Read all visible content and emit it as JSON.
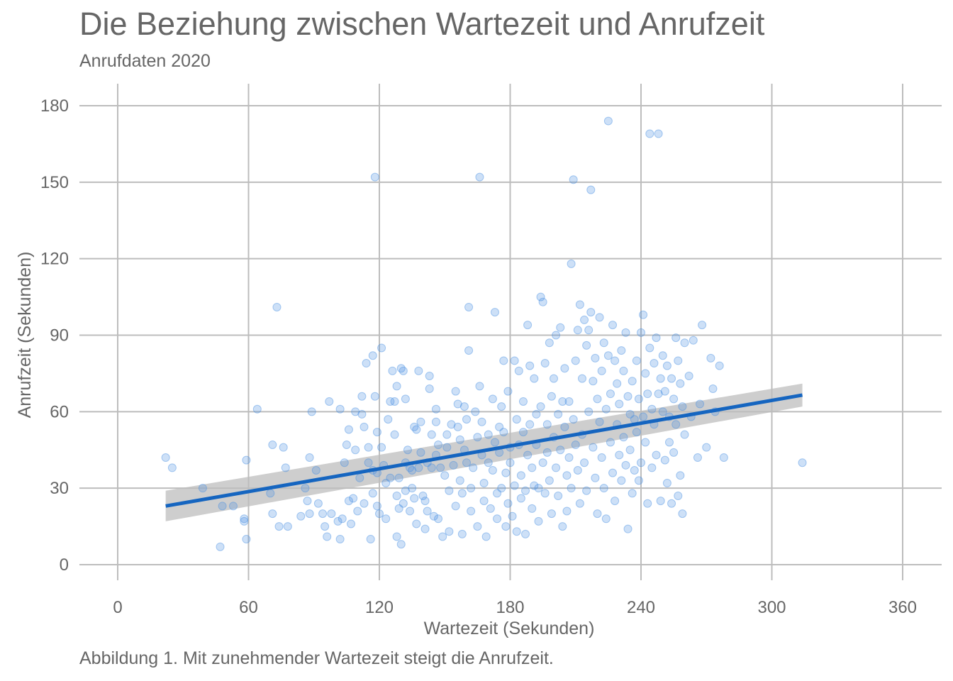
{
  "title": "Die Beziehung zwischen Wartezeit und Anrufzeit",
  "subtitle": "Anrufdaten 2020",
  "caption": "Abbildung 1. Mit zunehmender Wartezeit steigt die Anrufzeit.",
  "chart_data": {
    "type": "scatter",
    "title": "Die Beziehung zwischen Wartezeit und Anrufzeit",
    "subtitle": "Anrufdaten 2020",
    "xlabel": "Wartezeit (Sekunden)",
    "ylabel": "Anrufzeit (Sekunden)",
    "xlim": [
      -12,
      370
    ],
    "ylim": [
      -10,
      189
    ],
    "xticks": [
      0,
      60,
      120,
      180,
      240,
      300,
      360
    ],
    "yticks": [
      0,
      30,
      60,
      90,
      120,
      150,
      180
    ],
    "grid": true,
    "point_color": "#4a90e2",
    "line_color": "#1565c0",
    "band_color": "#bdbdbd",
    "points": [
      [
        22,
        42
      ],
      [
        25,
        38
      ],
      [
        39,
        30
      ],
      [
        47,
        7
      ],
      [
        48,
        23
      ],
      [
        53,
        23
      ],
      [
        58,
        18
      ],
      [
        58,
        17
      ],
      [
        59,
        41
      ],
      [
        59,
        10
      ],
      [
        64,
        61
      ],
      [
        70,
        28
      ],
      [
        71,
        47
      ],
      [
        71,
        20
      ],
      [
        73,
        101
      ],
      [
        74,
        15
      ],
      [
        76,
        46
      ],
      [
        77,
        38
      ],
      [
        78,
        15
      ],
      [
        84,
        19
      ],
      [
        86,
        30
      ],
      [
        87,
        25
      ],
      [
        88,
        42
      ],
      [
        88,
        20
      ],
      [
        89,
        60
      ],
      [
        91,
        37
      ],
      [
        92,
        24
      ],
      [
        94,
        20
      ],
      [
        95,
        15
      ],
      [
        96,
        11
      ],
      [
        97,
        64
      ],
      [
        98,
        20
      ],
      [
        101,
        17
      ],
      [
        102,
        10
      ],
      [
        102,
        61
      ],
      [
        103,
        18
      ],
      [
        104,
        40
      ],
      [
        105,
        47
      ],
      [
        106,
        53
      ],
      [
        106,
        25
      ],
      [
        107,
        16
      ],
      [
        108,
        26
      ],
      [
        109,
        60
      ],
      [
        109,
        45
      ],
      [
        110,
        21
      ],
      [
        111,
        34
      ],
      [
        112,
        66
      ],
      [
        112,
        59
      ],
      [
        113,
        54
      ],
      [
        113,
        24
      ],
      [
        114,
        79
      ],
      [
        115,
        46
      ],
      [
        115,
        40
      ],
      [
        116,
        10
      ],
      [
        117,
        82
      ],
      [
        117,
        28
      ],
      [
        117,
        37
      ],
      [
        118,
        152
      ],
      [
        118,
        66
      ],
      [
        119,
        23
      ],
      [
        119,
        52
      ],
      [
        119,
        36
      ],
      [
        120,
        20
      ],
      [
        121,
        85
      ],
      [
        121,
        46
      ],
      [
        122,
        39
      ],
      [
        123,
        32
      ],
      [
        123,
        18
      ],
      [
        124,
        57
      ],
      [
        125,
        64
      ],
      [
        125,
        34
      ],
      [
        126,
        76
      ],
      [
        127,
        64
      ],
      [
        127,
        51
      ],
      [
        128,
        70
      ],
      [
        128,
        11
      ],
      [
        128,
        27
      ],
      [
        129,
        22
      ],
      [
        129,
        34
      ],
      [
        130,
        77
      ],
      [
        130,
        8
      ],
      [
        131,
        76
      ],
      [
        131,
        24
      ],
      [
        132,
        65
      ],
      [
        132,
        40
      ],
      [
        132,
        29
      ],
      [
        133,
        45
      ],
      [
        134,
        38
      ],
      [
        134,
        21
      ],
      [
        135,
        37
      ],
      [
        135,
        30
      ],
      [
        136,
        54
      ],
      [
        136,
        26
      ],
      [
        137,
        53
      ],
      [
        137,
        16
      ],
      [
        138,
        76
      ],
      [
        138,
        38
      ],
      [
        139,
        56
      ],
      [
        139,
        44
      ],
      [
        140,
        27
      ],
      [
        141,
        14
      ],
      [
        141,
        25
      ],
      [
        142,
        21
      ],
      [
        142,
        40
      ],
      [
        143,
        74
      ],
      [
        143,
        69
      ],
      [
        144,
        51
      ],
      [
        144,
        38
      ],
      [
        145,
        19
      ],
      [
        146,
        61
      ],
      [
        146,
        56
      ],
      [
        146,
        43
      ],
      [
        147,
        47
      ],
      [
        147,
        18
      ],
      [
        148,
        38
      ],
      [
        149,
        11
      ],
      [
        150,
        35
      ],
      [
        151,
        51
      ],
      [
        151,
        46
      ],
      [
        152,
        13
      ],
      [
        152,
        29
      ],
      [
        153,
        55
      ],
      [
        154,
        39
      ],
      [
        155,
        68
      ],
      [
        155,
        23
      ],
      [
        156,
        63
      ],
      [
        156,
        54
      ],
      [
        157,
        49
      ],
      [
        157,
        33
      ],
      [
        158,
        28
      ],
      [
        158,
        12
      ],
      [
        159,
        62
      ],
      [
        159,
        45
      ],
      [
        160,
        57
      ],
      [
        160,
        40
      ],
      [
        161,
        101
      ],
      [
        161,
        84
      ],
      [
        162,
        30
      ],
      [
        162,
        21
      ],
      [
        163,
        38
      ],
      [
        164,
        60
      ],
      [
        165,
        15
      ],
      [
        165,
        50
      ],
      [
        166,
        152
      ],
      [
        166,
        70
      ],
      [
        167,
        56
      ],
      [
        167,
        43
      ],
      [
        168,
        25
      ],
      [
        168,
        32
      ],
      [
        169,
        11
      ],
      [
        170,
        51
      ],
      [
        170,
        40
      ],
      [
        171,
        22
      ],
      [
        172,
        65
      ],
      [
        172,
        37
      ],
      [
        173,
        99
      ],
      [
        173,
        48
      ],
      [
        174,
        28
      ],
      [
        174,
        18
      ],
      [
        175,
        54
      ],
      [
        175,
        44
      ],
      [
        176,
        62
      ],
      [
        176,
        30
      ],
      [
        177,
        80
      ],
      [
        177,
        52
      ],
      [
        178,
        36
      ],
      [
        178,
        15
      ],
      [
        179,
        68
      ],
      [
        179,
        24
      ],
      [
        180,
        46
      ],
      [
        180,
        40
      ],
      [
        181,
        19
      ],
      [
        182,
        80
      ],
      [
        182,
        31
      ],
      [
        183,
        57
      ],
      [
        183,
        13
      ],
      [
        184,
        76
      ],
      [
        184,
        47
      ],
      [
        185,
        35
      ],
      [
        185,
        26
      ],
      [
        186,
        64
      ],
      [
        186,
        52
      ],
      [
        187,
        29
      ],
      [
        187,
        12
      ],
      [
        188,
        94
      ],
      [
        188,
        43
      ],
      [
        189,
        78
      ],
      [
        189,
        55
      ],
      [
        190,
        38
      ],
      [
        190,
        22
      ],
      [
        191,
        73
      ],
      [
        191,
        31
      ],
      [
        192,
        59
      ],
      [
        192,
        47
      ],
      [
        193,
        17
      ],
      [
        193,
        30
      ],
      [
        194,
        105
      ],
      [
        194,
        62
      ],
      [
        195,
        103
      ],
      [
        195,
        40
      ],
      [
        196,
        79
      ],
      [
        196,
        28
      ],
      [
        197,
        55
      ],
      [
        197,
        44
      ],
      [
        198,
        87
      ],
      [
        198,
        33
      ],
      [
        199,
        66
      ],
      [
        199,
        20
      ],
      [
        200,
        73
      ],
      [
        200,
        50
      ],
      [
        201,
        90
      ],
      [
        201,
        38
      ],
      [
        202,
        59
      ],
      [
        202,
        27
      ],
      [
        203,
        93
      ],
      [
        203,
        45
      ],
      [
        204,
        64
      ],
      [
        204,
        15
      ],
      [
        205,
        77
      ],
      [
        205,
        54
      ],
      [
        206,
        35
      ],
      [
        206,
        21
      ],
      [
        207,
        64
      ],
      [
        207,
        42
      ],
      [
        208,
        118
      ],
      [
        208,
        30
      ],
      [
        209,
        151
      ],
      [
        209,
        57
      ],
      [
        210,
        80
      ],
      [
        210,
        47
      ],
      [
        211,
        92
      ],
      [
        211,
        37
      ],
      [
        212,
        102
      ],
      [
        212,
        24
      ],
      [
        213,
        73
      ],
      [
        213,
        51
      ],
      [
        214,
        96
      ],
      [
        214,
        40
      ],
      [
        215,
        86
      ],
      [
        215,
        29
      ],
      [
        216,
        92
      ],
      [
        216,
        60
      ],
      [
        217,
        147
      ],
      [
        217,
        99
      ],
      [
        218,
        72
      ],
      [
        218,
        46
      ],
      [
        219,
        81
      ],
      [
        219,
        34
      ],
      [
        220,
        65
      ],
      [
        220,
        20
      ],
      [
        221,
        97
      ],
      [
        221,
        56
      ],
      [
        222,
        76
      ],
      [
        222,
        42
      ],
      [
        223,
        87
      ],
      [
        223,
        30
      ],
      [
        224,
        61
      ],
      [
        224,
        18
      ],
      [
        225,
        174
      ],
      [
        225,
        82
      ],
      [
        226,
        67
      ],
      [
        226,
        48
      ],
      [
        227,
        94
      ],
      [
        227,
        36
      ],
      [
        228,
        80
      ],
      [
        228,
        25
      ],
      [
        229,
        71
      ],
      [
        229,
        55
      ],
      [
        230,
        63
      ],
      [
        230,
        43
      ],
      [
        231,
        84
      ],
      [
        231,
        33
      ],
      [
        232,
        76
      ],
      [
        232,
        50
      ],
      [
        233,
        91
      ],
      [
        233,
        39
      ],
      [
        234,
        66
      ],
      [
        234,
        14
      ],
      [
        235,
        59
      ],
      [
        235,
        45
      ],
      [
        236,
        72
      ],
      [
        236,
        28
      ],
      [
        237,
        57
      ],
      [
        237,
        37
      ],
      [
        238,
        80
      ],
      [
        238,
        52
      ],
      [
        239,
        65
      ],
      [
        239,
        33
      ],
      [
        240,
        91
      ],
      [
        240,
        40
      ],
      [
        241,
        98
      ],
      [
        241,
        58
      ],
      [
        242,
        75
      ],
      [
        242,
        48
      ],
      [
        243,
        67
      ],
      [
        243,
        24
      ],
      [
        244,
        169
      ],
      [
        244,
        85
      ],
      [
        245,
        61
      ],
      [
        245,
        38
      ],
      [
        246,
        79
      ],
      [
        246,
        55
      ],
      [
        247,
        89
      ],
      [
        247,
        43
      ],
      [
        248,
        169
      ],
      [
        248,
        67
      ],
      [
        249,
        73
      ],
      [
        249,
        25
      ],
      [
        250,
        82
      ],
      [
        250,
        60
      ],
      [
        251,
        68
      ],
      [
        251,
        41
      ],
      [
        252,
        78
      ],
      [
        252,
        32
      ],
      [
        253,
        58
      ],
      [
        253,
        48
      ],
      [
        254,
        73
      ],
      [
        254,
        24
      ],
      [
        255,
        65
      ],
      [
        255,
        44
      ],
      [
        256,
        89
      ],
      [
        256,
        55
      ],
      [
        257,
        80
      ],
      [
        257,
        27
      ],
      [
        258,
        71
      ],
      [
        258,
        35
      ],
      [
        259,
        62
      ],
      [
        259,
        20
      ],
      [
        260,
        87
      ],
      [
        260,
        51
      ],
      [
        262,
        74
      ],
      [
        263,
        58
      ],
      [
        264,
        88
      ],
      [
        266,
        42
      ],
      [
        267,
        63
      ],
      [
        268,
        94
      ],
      [
        270,
        46
      ],
      [
        272,
        81
      ],
      [
        273,
        69
      ],
      [
        274,
        60
      ],
      [
        276,
        78
      ],
      [
        278,
        42
      ],
      [
        314,
        40
      ]
    ],
    "fit": {
      "x": [
        22,
        314
      ],
      "y": [
        23,
        66.5
      ],
      "ci_lower": [
        17,
        62
      ],
      "ci_upper": [
        29,
        71
      ]
    }
  }
}
